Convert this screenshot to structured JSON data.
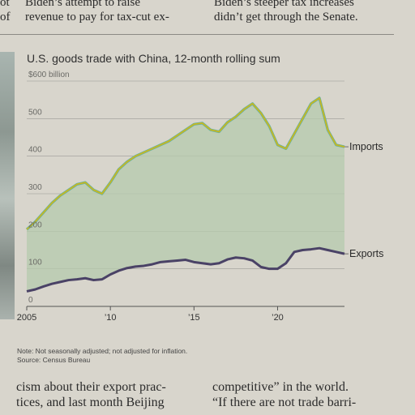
{
  "article_top": {
    "left_fragment": [
      "ot",
      "of"
    ],
    "middle": [
      "Biden’s attempt to raise",
      "revenue to pay for tax-cut ex-"
    ],
    "right": [
      "Biden’s steeper tax increases",
      "didn’t get through the Senate."
    ]
  },
  "chart_data": {
    "type": "area",
    "title": "U.S. goods trade with China, 12-month rolling sum",
    "y_top_label": "$600 billion",
    "ylim": [
      0,
      600
    ],
    "xlim": [
      2005,
      2024
    ],
    "y_ticks": [
      0,
      100,
      200,
      300,
      400,
      500
    ],
    "y_tick_labels": [
      "0",
      "100",
      "200",
      "300",
      "400",
      "500"
    ],
    "x_ticks": [
      2005,
      2010,
      2015,
      2020
    ],
    "x_tick_labels": [
      "2005",
      "’10",
      "’15",
      "’20"
    ],
    "grid": true,
    "series": [
      {
        "name": "Imports",
        "color": "#c8b820",
        "x": [
          2005,
          2005.5,
          2006,
          2006.5,
          2007,
          2007.5,
          2008,
          2008.5,
          2009,
          2009.5,
          2010,
          2010.5,
          2011,
          2011.5,
          2012,
          2012.5,
          2013,
          2013.5,
          2014,
          2014.5,
          2015,
          2015.5,
          2016,
          2016.5,
          2017,
          2017.5,
          2018,
          2018.5,
          2019,
          2019.5,
          2020,
          2020.5,
          2021,
          2021.5,
          2022,
          2022.5,
          2023,
          2023.5,
          2024
        ],
        "values": [
          205,
          225,
          250,
          275,
          295,
          310,
          325,
          330,
          310,
          300,
          330,
          365,
          385,
          400,
          410,
          420,
          430,
          440,
          455,
          470,
          485,
          488,
          470,
          465,
          490,
          505,
          525,
          540,
          515,
          480,
          430,
          420,
          460,
          500,
          540,
          555,
          470,
          430,
          425
        ]
      },
      {
        "name": "Exports",
        "color": "#4a4266",
        "x": [
          2005,
          2005.5,
          2006,
          2006.5,
          2007,
          2007.5,
          2008,
          2008.5,
          2009,
          2009.5,
          2010,
          2010.5,
          2011,
          2011.5,
          2012,
          2012.5,
          2013,
          2013.5,
          2014,
          2014.5,
          2015,
          2015.5,
          2016,
          2016.5,
          2017,
          2017.5,
          2018,
          2018.5,
          2019,
          2019.5,
          2020,
          2020.5,
          2021,
          2021.5,
          2022,
          2022.5,
          2023,
          2023.5,
          2024
        ],
        "values": [
          40,
          45,
          53,
          60,
          65,
          70,
          72,
          75,
          70,
          72,
          85,
          95,
          102,
          106,
          108,
          112,
          118,
          120,
          122,
          124,
          118,
          115,
          112,
          115,
          125,
          130,
          128,
          122,
          105,
          100,
          100,
          115,
          145,
          150,
          152,
          155,
          150,
          145,
          140
        ]
      }
    ],
    "note": "Note: Not seasonally adjusted; not adjusted for inflation.",
    "source": "Source: Census Bureau"
  },
  "article_bottom": {
    "left": [
      "cism about their export prac-",
      "tices, and last month Beijing"
    ],
    "right": [
      "competitive” in the world.",
      "“If there are not trade barri-"
    ]
  }
}
